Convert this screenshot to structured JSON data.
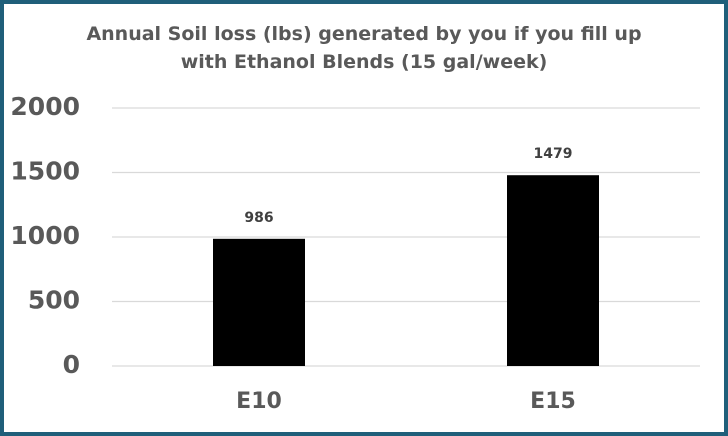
{
  "chart_data": {
    "type": "bar",
    "title": "Annual Soil loss (lbs) generated by you if you fill up with Ethanol Blends (15 gal/week)",
    "categories": [
      "E10",
      "E15"
    ],
    "values": [
      986,
      1479
    ],
    "color": "#000000",
    "ylim": [
      0,
      2000
    ],
    "yticks": [
      0,
      500,
      1000,
      1500,
      2000
    ],
    "grid": true,
    "data_labels": true
  }
}
